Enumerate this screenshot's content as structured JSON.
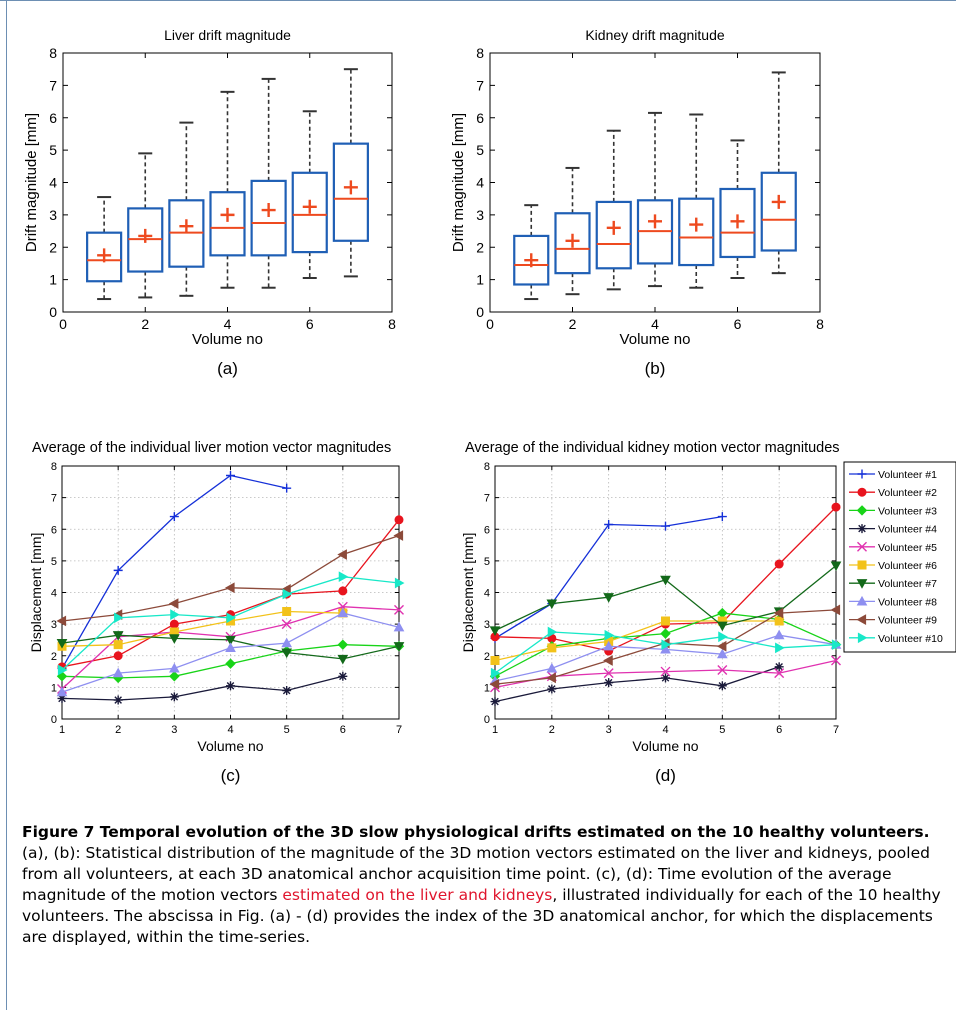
{
  "colors": {
    "box": "#1f5fb5",
    "median": "#ee4a1f",
    "mean": "#ee4a1f",
    "whisker": "#333333",
    "caption_link": "#e0152d",
    "frame": "#6d8fb3"
  },
  "chart_data": [
    {
      "id": "a",
      "type": "box",
      "title": "Liver drift magnitude",
      "xlabel": "Volume no",
      "ylabel": "Drift magnitude [mm]",
      "panel_label": "(a)",
      "xlim": [
        0,
        8
      ],
      "ylim": [
        0,
        8
      ],
      "xticks": [
        "0",
        "2",
        "4",
        "6",
        "8"
      ],
      "yticks": [
        "0",
        "1",
        "2",
        "3",
        "4",
        "5",
        "6",
        "7",
        "8"
      ],
      "boxes": [
        {
          "x": 1,
          "min": 0.4,
          "q1": 0.95,
          "median": 1.6,
          "q3": 2.45,
          "max": 3.55,
          "mean": 1.75
        },
        {
          "x": 2,
          "min": 0.45,
          "q1": 1.25,
          "median": 2.25,
          "q3": 3.2,
          "max": 4.9,
          "mean": 2.35
        },
        {
          "x": 3,
          "min": 0.5,
          "q1": 1.4,
          "median": 2.45,
          "q3": 3.45,
          "max": 5.85,
          "mean": 2.65
        },
        {
          "x": 4,
          "min": 0.75,
          "q1": 1.75,
          "median": 2.6,
          "q3": 3.7,
          "max": 6.8,
          "mean": 3.0
        },
        {
          "x": 5,
          "min": 0.75,
          "q1": 1.75,
          "median": 2.75,
          "q3": 4.05,
          "max": 7.2,
          "mean": 3.15
        },
        {
          "x": 6,
          "min": 1.05,
          "q1": 1.85,
          "median": 3.0,
          "q3": 4.3,
          "max": 6.2,
          "mean": 3.25
        },
        {
          "x": 7,
          "min": 1.1,
          "q1": 2.2,
          "median": 3.5,
          "q3": 5.2,
          "max": 7.5,
          "mean": 3.85
        }
      ]
    },
    {
      "id": "b",
      "type": "box",
      "title": "Kidney drift magnitude",
      "xlabel": "Volume no",
      "ylabel": "Drift magnitude [mm]",
      "panel_label": "(b)",
      "xlim": [
        0,
        8
      ],
      "ylim": [
        0,
        8
      ],
      "xticks": [
        "0",
        "2",
        "4",
        "6",
        "8"
      ],
      "yticks": [
        "0",
        "1",
        "2",
        "3",
        "4",
        "5",
        "6",
        "7",
        "8"
      ],
      "boxes": [
        {
          "x": 1,
          "min": 0.4,
          "q1": 0.85,
          "median": 1.45,
          "q3": 2.35,
          "max": 3.3,
          "mean": 1.6
        },
        {
          "x": 2,
          "min": 0.55,
          "q1": 1.2,
          "median": 1.95,
          "q3": 3.05,
          "max": 4.45,
          "mean": 2.2
        },
        {
          "x": 3,
          "min": 0.7,
          "q1": 1.35,
          "median": 2.1,
          "q3": 3.4,
          "max": 5.6,
          "mean": 2.6
        },
        {
          "x": 4,
          "min": 0.8,
          "q1": 1.5,
          "median": 2.5,
          "q3": 3.45,
          "max": 6.15,
          "mean": 2.8
        },
        {
          "x": 5,
          "min": 0.75,
          "q1": 1.45,
          "median": 2.3,
          "q3": 3.5,
          "max": 6.1,
          "mean": 2.7
        },
        {
          "x": 6,
          "min": 1.05,
          "q1": 1.7,
          "median": 2.45,
          "q3": 3.8,
          "max": 5.3,
          "mean": 2.8
        },
        {
          "x": 7,
          "min": 1.2,
          "q1": 1.9,
          "median": 2.85,
          "q3": 4.3,
          "max": 7.4,
          "mean": 3.4
        }
      ]
    },
    {
      "id": "c",
      "type": "line",
      "title": "Average of the individual liver motion vector magnitudes",
      "xlabel": "Volume no",
      "ylabel": "Displacement [mm]",
      "panel_label": "(c)",
      "xlim": [
        1,
        7
      ],
      "ylim": [
        0,
        8
      ],
      "xticks": [
        "1",
        "2",
        "3",
        "4",
        "5",
        "6",
        "7"
      ],
      "yticks": [
        "0",
        "1",
        "2",
        "3",
        "4",
        "5",
        "6",
        "7",
        "8"
      ],
      "grid": true,
      "series": [
        {
          "color": "#1530d8",
          "marker": "plus",
          "x": [
            1,
            2,
            3,
            4,
            5
          ],
          "y": [
            1.6,
            4.7,
            6.4,
            7.7,
            7.3
          ]
        },
        {
          "color": "#e8141e",
          "marker": "circle",
          "x": [
            1,
            2,
            3,
            4,
            5,
            6,
            7
          ],
          "y": [
            1.65,
            2.0,
            3.0,
            3.3,
            3.95,
            4.05,
            6.3
          ]
        },
        {
          "color": "#18d418",
          "marker": "diamond",
          "x": [
            1,
            2,
            3,
            4,
            5,
            6,
            7
          ],
          "y": [
            1.35,
            1.3,
            1.35,
            1.75,
            2.15,
            2.35,
            2.3
          ]
        },
        {
          "color": "#1a1a3a",
          "marker": "star",
          "x": [
            1,
            2,
            3,
            4,
            5,
            6
          ],
          "y": [
            0.65,
            0.6,
            0.7,
            1.05,
            0.9,
            1.35
          ]
        },
        {
          "color": "#e032b0",
          "marker": "x",
          "x": [
            1,
            2,
            3,
            4,
            5,
            6,
            7
          ],
          "y": [
            0.95,
            2.6,
            2.75,
            2.6,
            3.0,
            3.55,
            3.45
          ]
        },
        {
          "color": "#f2c21a",
          "marker": "square",
          "x": [
            1,
            2,
            3,
            4,
            5,
            6
          ],
          "y": [
            2.3,
            2.35,
            2.75,
            3.1,
            3.4,
            3.35
          ]
        },
        {
          "color": "#13691a",
          "marker": "tri-down",
          "x": [
            1,
            2,
            3,
            4,
            5,
            6,
            7
          ],
          "y": [
            2.4,
            2.65,
            2.55,
            2.5,
            2.1,
            1.9,
            2.3
          ]
        },
        {
          "color": "#8e8ff0",
          "marker": "tri-up",
          "x": [
            1,
            2,
            3,
            4,
            5,
            6,
            7
          ],
          "y": [
            0.85,
            1.45,
            1.6,
            2.25,
            2.4,
            3.35,
            2.9
          ]
        },
        {
          "color": "#8c4a3a",
          "marker": "tri-left",
          "x": [
            1,
            2,
            3,
            4,
            5,
            6,
            7
          ],
          "y": [
            3.1,
            3.3,
            3.65,
            4.15,
            4.1,
            5.2,
            5.8
          ]
        },
        {
          "color": "#18e8c8",
          "marker": "tri-right",
          "x": [
            1,
            2,
            3,
            4,
            5,
            6,
            7
          ],
          "y": [
            1.55,
            3.2,
            3.3,
            3.2,
            3.95,
            4.5,
            4.3
          ]
        }
      ]
    },
    {
      "id": "d",
      "type": "line",
      "title": "Average of the individual kidney motion vector magnitudes",
      "xlabel": "Volume no",
      "ylabel": "Displacement [mm]",
      "panel_label": "(d)",
      "xlim": [
        1,
        7
      ],
      "ylim": [
        0,
        8
      ],
      "xticks": [
        "1",
        "2",
        "3",
        "4",
        "5",
        "6",
        "7"
      ],
      "yticks": [
        "0",
        "1",
        "2",
        "3",
        "4",
        "5",
        "6",
        "7",
        "8"
      ],
      "grid": true,
      "legend_position": "top-right-outside",
      "series": [
        {
          "name": "Volunteer #1",
          "color": "#1530d8",
          "marker": "plus",
          "x": [
            1,
            2,
            3,
            4,
            5
          ],
          "y": [
            2.55,
            3.65,
            6.15,
            6.1,
            6.4
          ]
        },
        {
          "name": "Volunteer #2",
          "color": "#e8141e",
          "marker": "circle",
          "x": [
            1,
            2,
            3,
            4,
            5,
            6,
            7
          ],
          "y": [
            2.6,
            2.55,
            2.15,
            3.0,
            3.05,
            4.9,
            6.7
          ]
        },
        {
          "name": "Volunteer #3",
          "color": "#18d418",
          "marker": "diamond",
          "x": [
            1,
            2,
            3,
            4,
            5,
            6,
            7
          ],
          "y": [
            1.35,
            2.3,
            2.55,
            2.7,
            3.35,
            3.15,
            2.35
          ]
        },
        {
          "name": "Volunteer #4",
          "color": "#1a1a3a",
          "marker": "star",
          "x": [
            1,
            2,
            3,
            4,
            5,
            6
          ],
          "y": [
            0.55,
            0.95,
            1.15,
            1.3,
            1.05,
            1.65
          ]
        },
        {
          "name": "Volunteer #5",
          "color": "#e032b0",
          "marker": "x",
          "x": [
            1,
            2,
            3,
            4,
            5,
            6,
            7
          ],
          "y": [
            1.0,
            1.35,
            1.45,
            1.5,
            1.55,
            1.45,
            1.85
          ]
        },
        {
          "name": "Volunteer #6",
          "color": "#f2c21a",
          "marker": "square",
          "x": [
            1,
            2,
            3,
            4,
            5,
            6
          ],
          "y": [
            1.85,
            2.25,
            2.45,
            3.1,
            3.1,
            3.1
          ]
        },
        {
          "name": "Volunteer #7",
          "color": "#13691a",
          "marker": "tri-down",
          "x": [
            1,
            2,
            3,
            4,
            5,
            6,
            7
          ],
          "y": [
            2.8,
            3.65,
            3.85,
            4.4,
            2.95,
            3.4,
            4.85
          ]
        },
        {
          "name": "Volunteer #8",
          "color": "#8e8ff0",
          "marker": "tri-up",
          "x": [
            1,
            2,
            3,
            4,
            5,
            6,
            7
          ],
          "y": [
            1.2,
            1.6,
            2.3,
            2.2,
            2.05,
            2.65,
            2.35
          ]
        },
        {
          "name": "Volunteer #9",
          "color": "#8c4a3a",
          "marker": "tri-left",
          "x": [
            1,
            2,
            3,
            4,
            5,
            6,
            7
          ],
          "y": [
            1.1,
            1.3,
            1.85,
            2.4,
            2.3,
            3.35,
            3.45
          ]
        },
        {
          "name": "Volunteer #10",
          "color": "#18e8c8",
          "marker": "tri-right",
          "x": [
            1,
            2,
            3,
            4,
            5,
            6,
            7
          ],
          "y": [
            1.45,
            2.75,
            2.65,
            2.35,
            2.6,
            2.25,
            2.35
          ]
        }
      ]
    }
  ],
  "caption": {
    "title": "Figure 7 Temporal evolution of the 3D slow physiological drifts estimated on the 10 healthy volunteers.",
    "text_1": " (a), (b): Statistical distribution of the magnitude of the 3D motion vectors estimated on the liver and kidneys, pooled from all volunteers, at each 3D anatomical anchor acquisition time point. (c), (d): Time evolution of the average magnitude of the motion vectors ",
    "link": "estimated on the liver and kidneys",
    "text_2": ", illustrated individually for each of the 10 healthy volunteers. The abscissa in Fig. (a) - (d) provides the index of the 3D anatomical anchor, for which the displacements are displayed, within the time-series."
  }
}
